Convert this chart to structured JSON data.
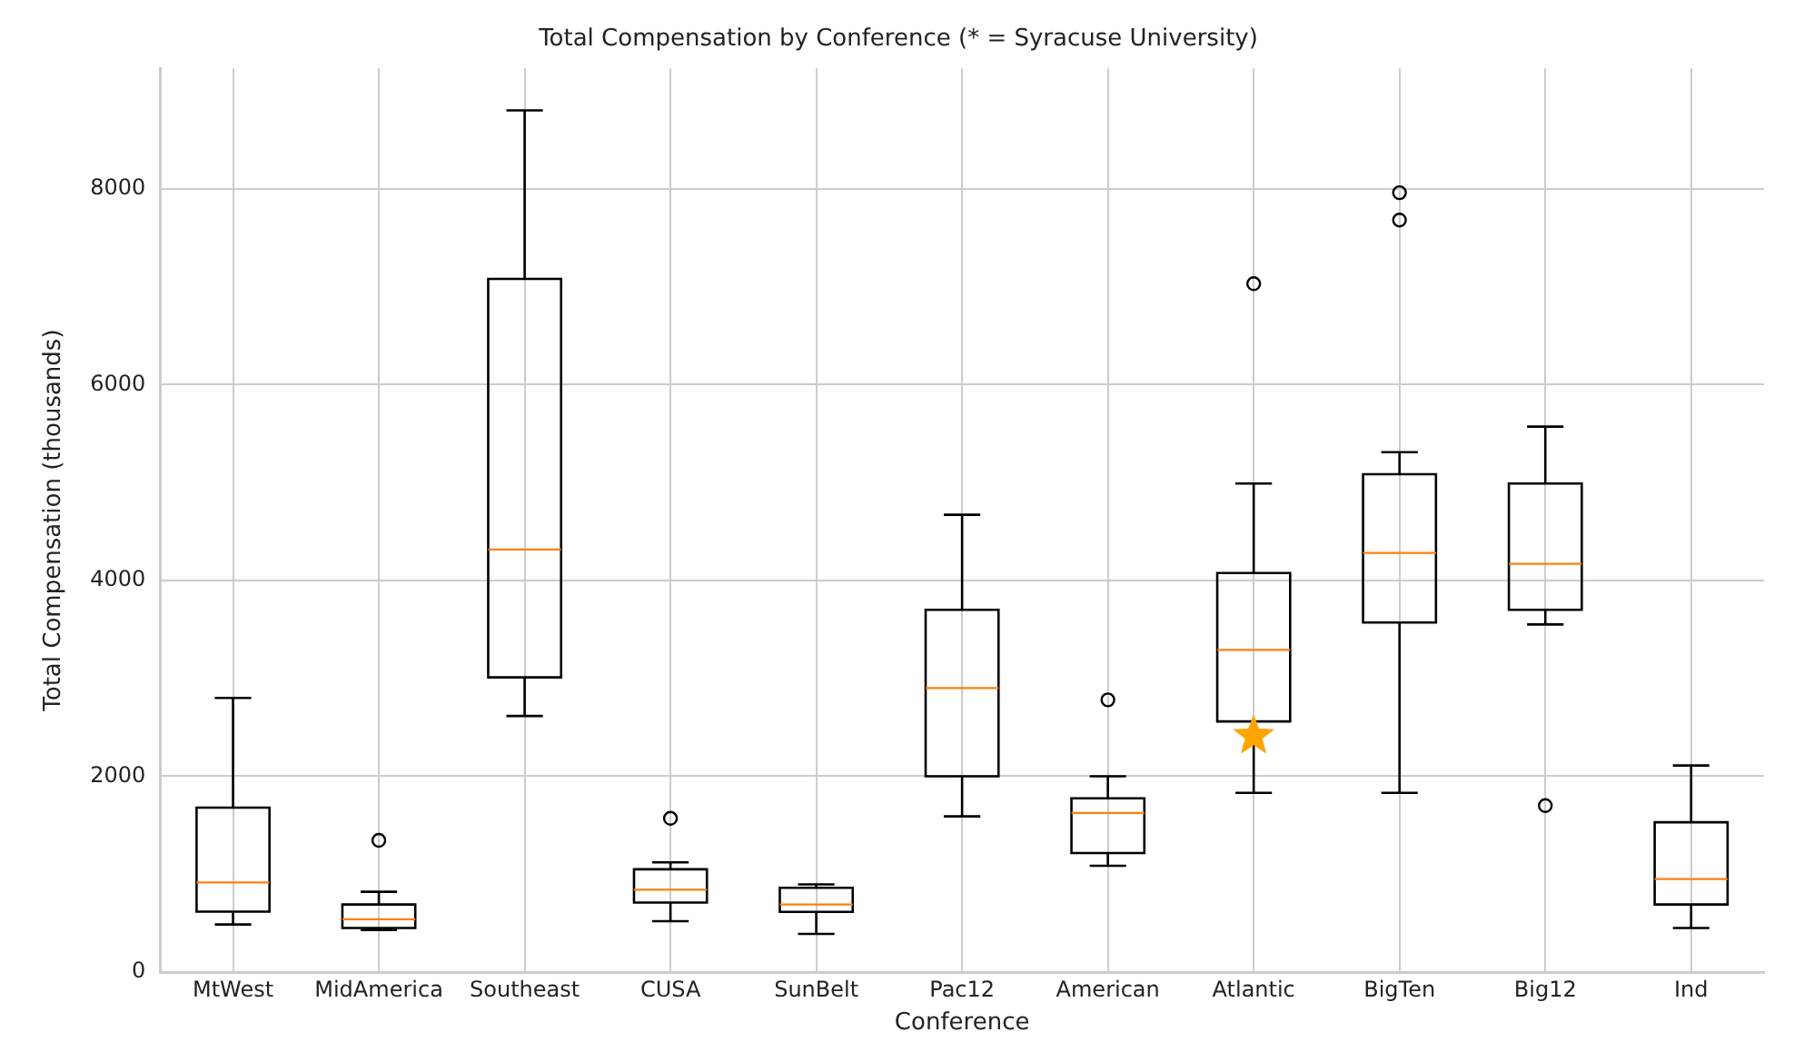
{
  "chart_data": {
    "type": "box",
    "title": "Total Compensation by Conference (* = Syracuse University)",
    "xlabel": "Conference",
    "ylabel": "Total Compensation (thousands)",
    "categories": [
      "MtWest",
      "MidAmerica",
      "Southeast",
      "CUSA",
      "SunBelt",
      "Pac12",
      "American",
      "Atlantic",
      "BigTen",
      "Big12",
      "Ind"
    ],
    "series": [
      {
        "color": "#000000",
        "boxes": [
          {
            "low": 486,
            "q1": 617,
            "median": 915,
            "q3": 1680,
            "high": 2800
          },
          {
            "low": 430,
            "q1": 450,
            "median": 540,
            "q3": 690,
            "high": 820,
            "outliers": [
              1345
            ]
          },
          {
            "low": 2615,
            "q1": 3010,
            "median": 4315,
            "q3": 7080,
            "high": 8800
          },
          {
            "low": 520,
            "q1": 710,
            "median": 840,
            "q3": 1050,
            "high": 1120,
            "outliers": [
              1570
            ]
          },
          {
            "low": 390,
            "q1": 615,
            "median": 690,
            "q3": 860,
            "high": 895
          },
          {
            "low": 1590,
            "q1": 2000,
            "median": 2900,
            "q3": 3700,
            "high": 4670
          },
          {
            "low": 1085,
            "q1": 1215,
            "median": 1625,
            "q3": 1775,
            "high": 2000,
            "outliers": [
              2780
            ]
          },
          {
            "low": 1830,
            "q1": 2560,
            "median": 3290,
            "q3": 4075,
            "high": 4990,
            "outliers": [
              7030
            ]
          },
          {
            "low": 1830,
            "q1": 3570,
            "median": 4280,
            "q3": 5085,
            "high": 5310,
            "outliers": [
              7960,
              7680
            ]
          },
          {
            "low": 3550,
            "q1": 3700,
            "median": 4170,
            "q3": 4990,
            "high": 5570,
            "outliers": [
              1700
            ]
          },
          {
            "low": 450,
            "q1": 690,
            "median": 950,
            "q3": 1530,
            "high": 2110
          }
        ]
      },
      {
        "type": "scatter",
        "color": "#ffa500",
        "marker": "star",
        "x": [
          "Atlantic"
        ],
        "values": [
          2410
        ]
      }
    ],
    "ylim": [
      0,
      9230
    ],
    "yticks": [
      0,
      2000,
      4000,
      6000,
      8000
    ],
    "grid": true
  }
}
